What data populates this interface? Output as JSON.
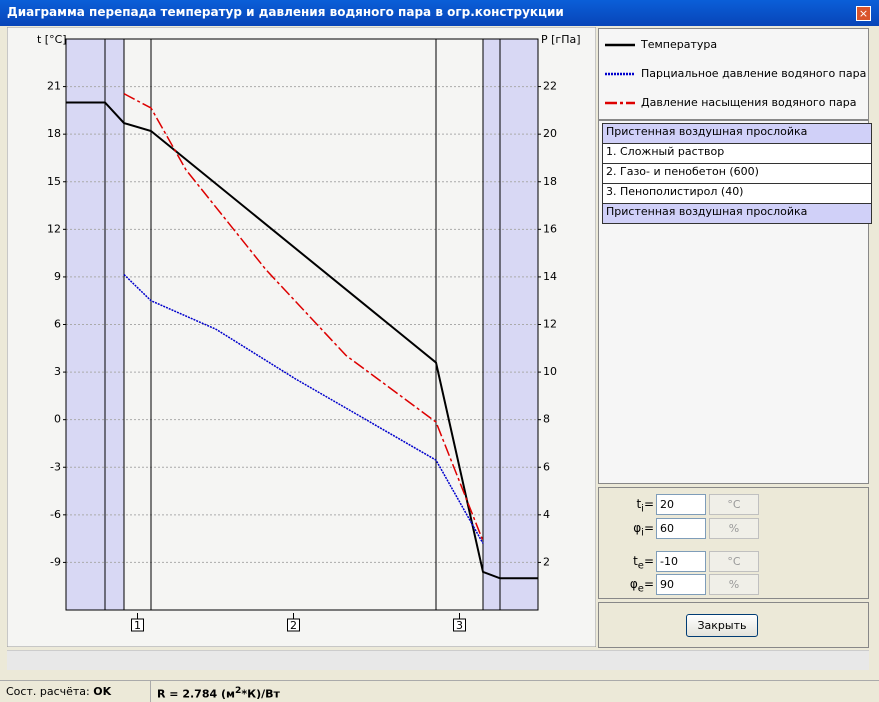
{
  "window": {
    "title": "Диаграмма перепада температур и давления водяного пара в огр.конструкции"
  },
  "chart_data": {
    "type": "line",
    "ylabel": "t [°C]",
    "y2label": "P [гПа]",
    "xlim": [
      0,
      472
    ],
    "ylim": [
      -12,
      24
    ],
    "yticks": [
      21,
      18,
      15,
      12,
      9,
      6,
      3,
      0,
      -3,
      -6,
      -9
    ],
    "y2lim": [
      0,
      24
    ],
    "y2ticks": [
      22,
      20,
      18,
      16,
      14,
      12,
      10,
      8,
      6,
      4,
      2
    ],
    "grid": true,
    "boundaries": [
      39,
      58,
      85,
      370,
      417,
      434
    ],
    "shaded": [
      [
        0,
        58
      ],
      [
        417,
        472
      ]
    ],
    "layer_labels": [
      "1",
      "2",
      "3"
    ],
    "series": [
      {
        "name": "Температура",
        "color": "#000000",
        "style": "solid",
        "x": [
          0,
          39,
          58,
          85,
          370,
          417,
          434,
          472
        ],
        "values": [
          20,
          20,
          18.7,
          18.2,
          3.6,
          -9.6,
          -10,
          -10
        ]
      },
      {
        "name": "Парциальное давление водяного пара",
        "color": "#0000cc",
        "style": "dotted",
        "axis": "y2",
        "x": [
          58,
          85,
          150,
          230,
          300,
          370,
          417
        ],
        "values": [
          14.1,
          13.0,
          11.8,
          9.7,
          8.0,
          6.3,
          2.8
        ]
      },
      {
        "name": "Давление насыщения водяного пара",
        "color": "#dd0000",
        "style": "dashed",
        "axis": "y2",
        "x": [
          58,
          85,
          120,
          200,
          280,
          370,
          417
        ],
        "values": [
          21.7,
          21.1,
          18.5,
          14.3,
          10.7,
          7.9,
          2.9
        ]
      }
    ]
  },
  "layers": [
    {
      "label": "Пристенная воздушная прослойка",
      "highlighted": true
    },
    {
      "label": "1. Сложный раствор",
      "highlighted": false
    },
    {
      "label": "2. Газо- и пенобетон (600)",
      "highlighted": false
    },
    {
      "label": "3. Пенополистирол (40)",
      "highlighted": false
    },
    {
      "label": "Пристенная воздушная прослойка",
      "highlighted": true
    }
  ],
  "inputs": {
    "eq": "=",
    "rows": [
      {
        "symbol": "t",
        "sub": "i",
        "value": 20,
        "unit": "°C"
      },
      {
        "symbol": "φ",
        "sub": "i",
        "value": 60,
        "unit": "%"
      },
      {
        "symbol": "t",
        "sub": "e",
        "value": -10,
        "unit": "°C"
      },
      {
        "symbol": "φ",
        "sub": "e",
        "value": 90,
        "unit": "%"
      }
    ]
  },
  "button": "Закрыть",
  "status": {
    "state_label": "Сост. расчёта:",
    "state": "OK",
    "r_prefix": "R = 2.784 (м",
    "r_sup": "2",
    "r_suffix": "*К)/Вт"
  }
}
